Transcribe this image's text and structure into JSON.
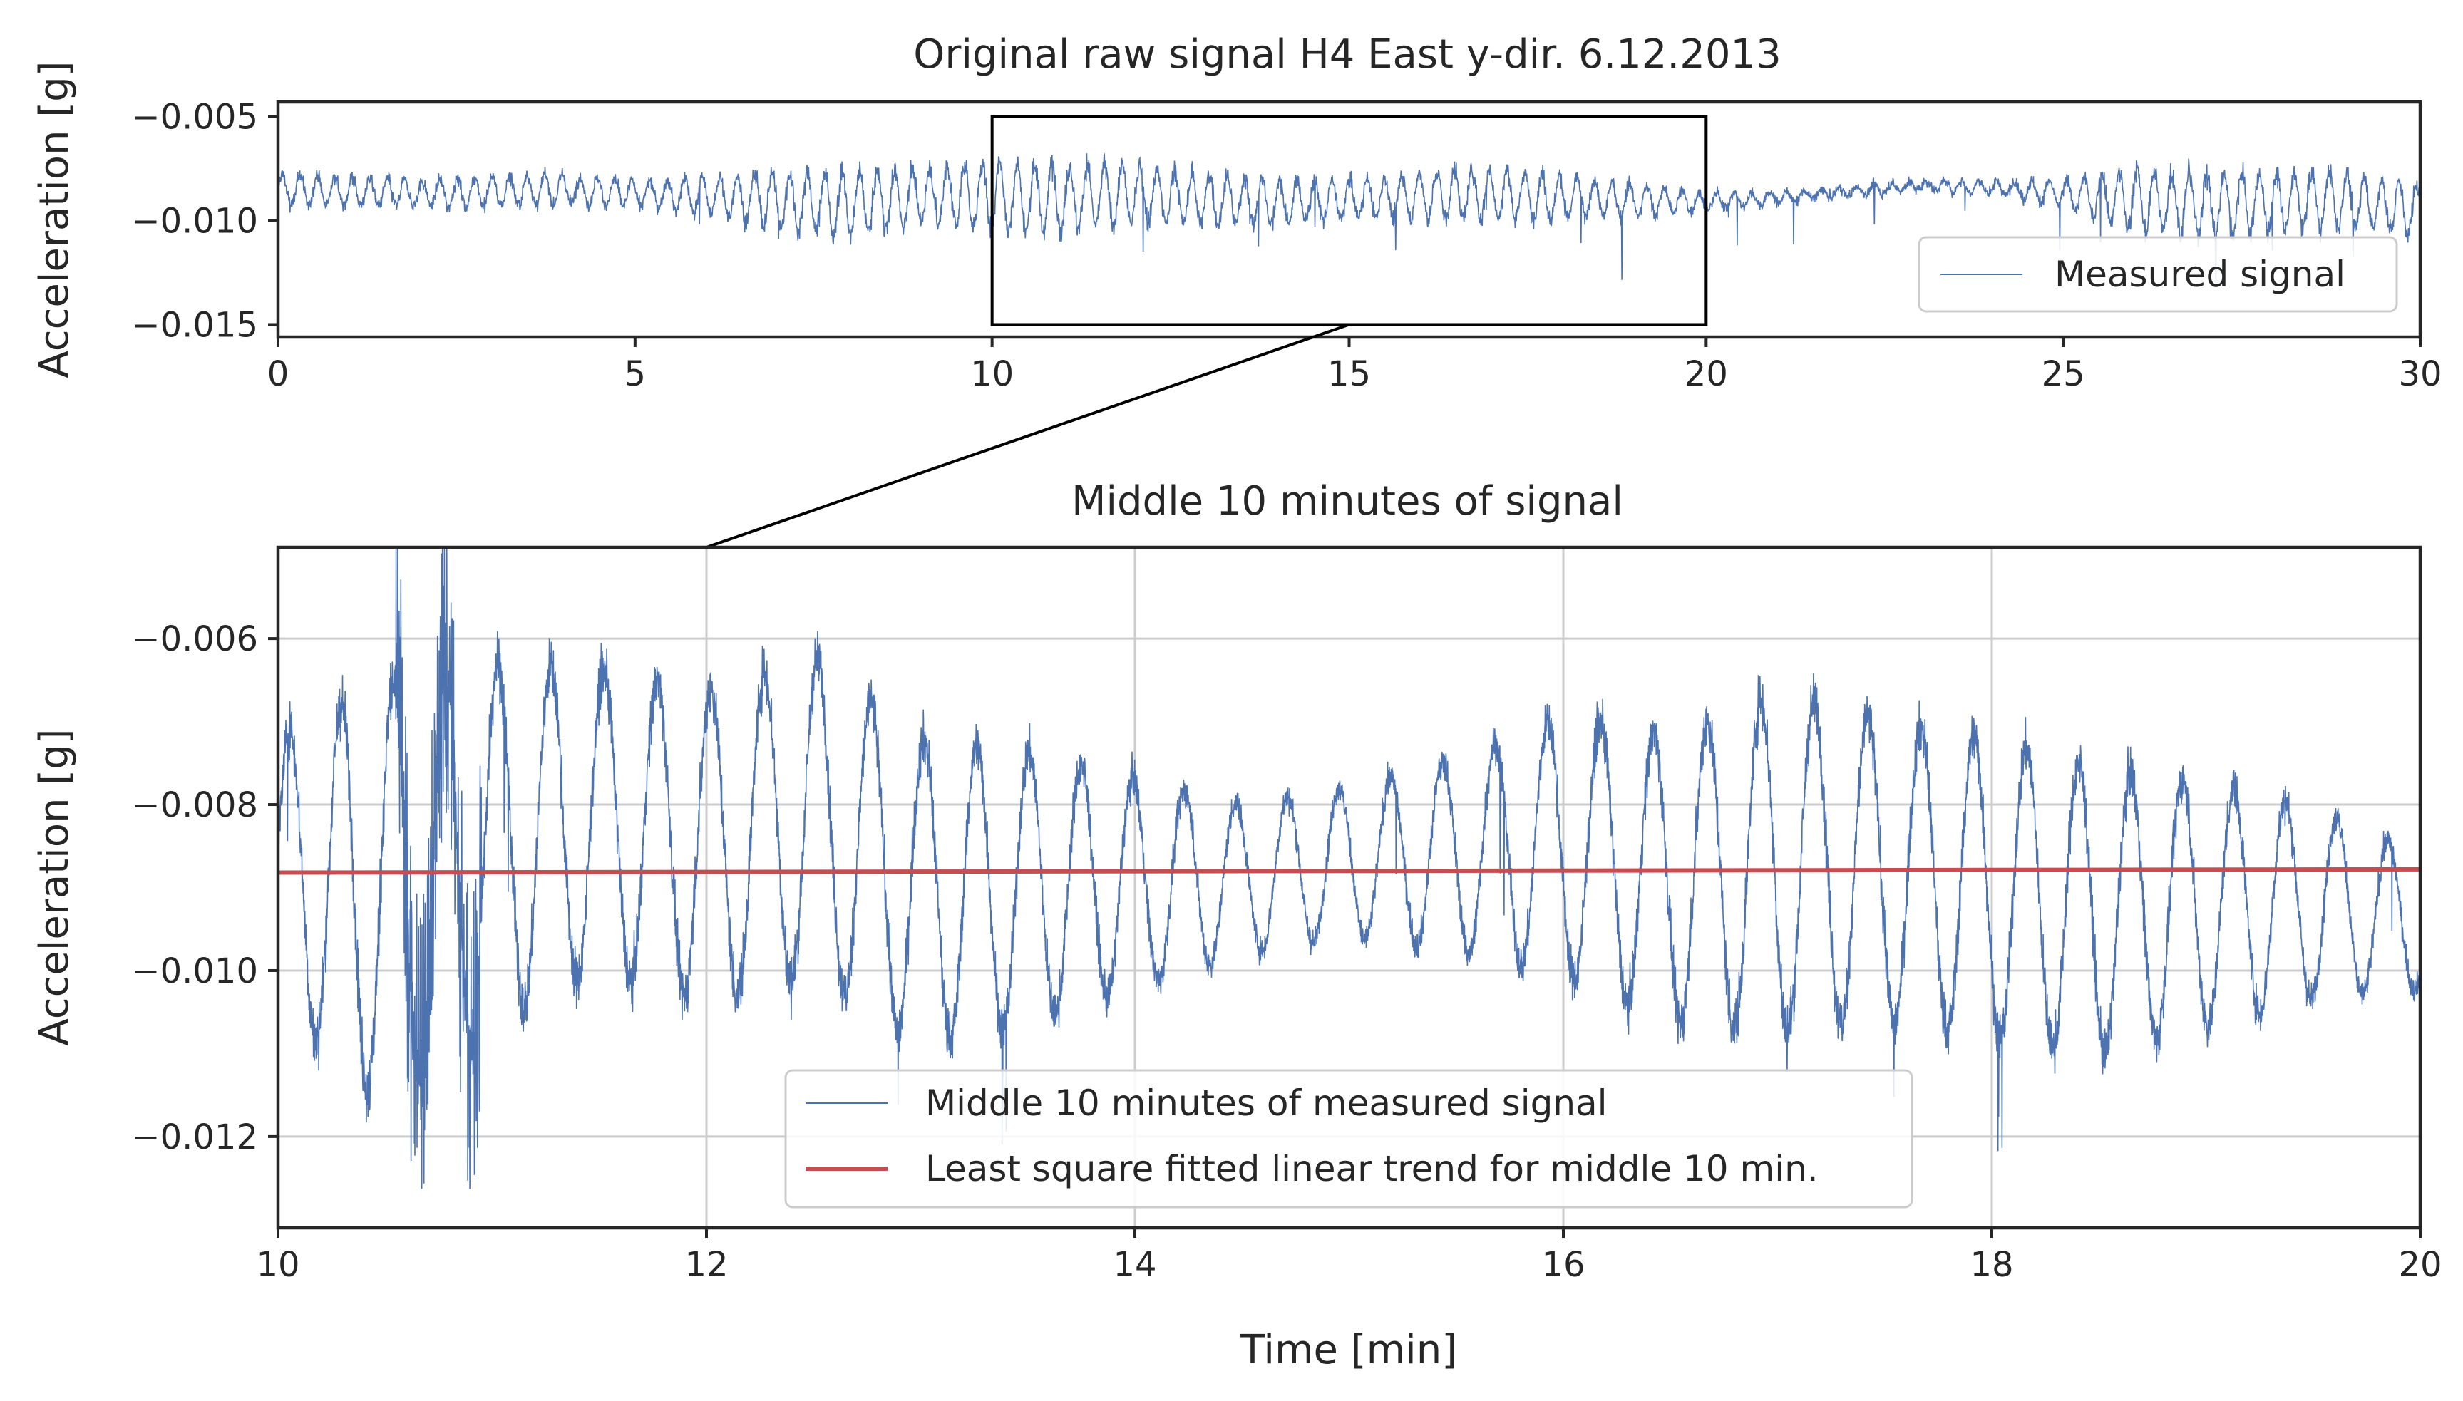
{
  "colors": {
    "signal": "#4c72b0",
    "trend": "#c44e52",
    "axes": "#262626",
    "grid": "#cccccc",
    "zoom_box": "#000000",
    "legend_border": "#cccccc"
  },
  "chart_data": [
    {
      "type": "line",
      "title": "Original raw signal H4 East y-dir. 6.12.2013",
      "xlabel": "",
      "ylabel": "Acceleration [g]",
      "xlim": [
        0,
        30
      ],
      "ylim": [
        -0.0156,
        -0.0043
      ],
      "x_ticks": [
        "0",
        "5",
        "10",
        "15",
        "20",
        "25",
        "30"
      ],
      "x_tick_values": [
        0,
        5,
        10,
        15,
        20,
        25,
        30
      ],
      "y_ticks": [
        "−0.005",
        "−0.010",
        "−0.015"
      ],
      "y_tick_values": [
        -0.005,
        -0.01,
        -0.015
      ],
      "grid": false,
      "legend_position": "lower-right",
      "series": [
        {
          "name": "Measured signal",
          "x": [
            0,
            1,
            2,
            3,
            4,
            5,
            6,
            7,
            8,
            9,
            10,
            11,
            12,
            13,
            14,
            15,
            16,
            17,
            18,
            19,
            20,
            21,
            22,
            23,
            24,
            25,
            26,
            27,
            28,
            29,
            30
          ],
          "y": [
            -0.0085,
            -0.0086,
            -0.0087,
            -0.0086,
            -0.0085,
            -0.0087,
            -0.0088,
            -0.009,
            -0.0092,
            -0.0088,
            -0.0088,
            -0.0089,
            -0.0087,
            -0.009,
            -0.0091,
            -0.009,
            -0.0088,
            -0.0087,
            -0.0089,
            -0.009,
            -0.0091,
            -0.0089,
            -0.0086,
            -0.0083,
            -0.0084,
            -0.0087,
            -0.009,
            -0.0092,
            -0.0091,
            -0.009,
            -0.0095
          ],
          "envelope": [
            0.0015,
            0.0014,
            0.0012,
            0.0015,
            0.0014,
            0.0012,
            0.0017,
            0.0027,
            0.003,
            0.0025,
            0.0032,
            0.0032,
            0.0027,
            0.0024,
            0.0021,
            0.0018,
            0.0022,
            0.0024,
            0.002,
            0.0015,
            0.0008,
            0.0005,
            0.0004,
            0.0004,
            0.0006,
            0.0012,
            0.003,
            0.003,
            0.0027,
            0.0026,
            0.0024
          ]
        }
      ],
      "zoom_box": {
        "x0": 10,
        "x1": 20,
        "y0": -0.015,
        "y1": -0.005
      }
    },
    {
      "type": "line",
      "title": "Middle 10 minutes of signal",
      "xlabel": "Time [min]",
      "ylabel": "Acceleration [g]",
      "xlim": [
        10,
        20
      ],
      "ylim": [
        -0.0131,
        -0.0049
      ],
      "x_ticks": [
        "10",
        "12",
        "14",
        "16",
        "18",
        "20"
      ],
      "x_tick_values": [
        10,
        12,
        14,
        16,
        18,
        20
      ],
      "y_ticks": [
        "−0.006",
        "−0.008",
        "−0.010",
        "−0.012"
      ],
      "y_tick_values": [
        -0.006,
        -0.008,
        -0.01,
        -0.012
      ],
      "grid": true,
      "legend_position": "lower-center",
      "series": [
        {
          "name": "Middle 10 minutes of measured signal",
          "oscillation_period_min": 0.245,
          "x": [
            10.0,
            10.5,
            11.0,
            11.5,
            12.0,
            12.5,
            13.0,
            13.5,
            14.0,
            14.5,
            15.0,
            15.5,
            16.0,
            16.5,
            17.0,
            17.5,
            18.0,
            18.5,
            19.0,
            19.5,
            20.0
          ],
          "peak_y": [
            -0.0068,
            -0.006,
            -0.0058,
            -0.006,
            -0.0062,
            -0.0058,
            -0.0068,
            -0.007,
            -0.0074,
            -0.0078,
            -0.0076,
            -0.0072,
            -0.0066,
            -0.0068,
            -0.0062,
            -0.0066,
            -0.0068,
            -0.0072,
            -0.0074,
            -0.0078,
            -0.0084
          ],
          "trough_y": [
            -0.0108,
            -0.0122,
            -0.0111,
            -0.0104,
            -0.0108,
            -0.0105,
            -0.0113,
            -0.011,
            -0.0105,
            -0.01,
            -0.0098,
            -0.01,
            -0.0104,
            -0.011,
            -0.0112,
            -0.011,
            -0.0112,
            -0.0114,
            -0.011,
            -0.0106,
            -0.0104
          ]
        },
        {
          "name": "Least square fitted linear trend for middle 10 min.",
          "x": [
            10,
            20
          ],
          "y": [
            -0.00882,
            -0.00878
          ]
        }
      ]
    }
  ]
}
